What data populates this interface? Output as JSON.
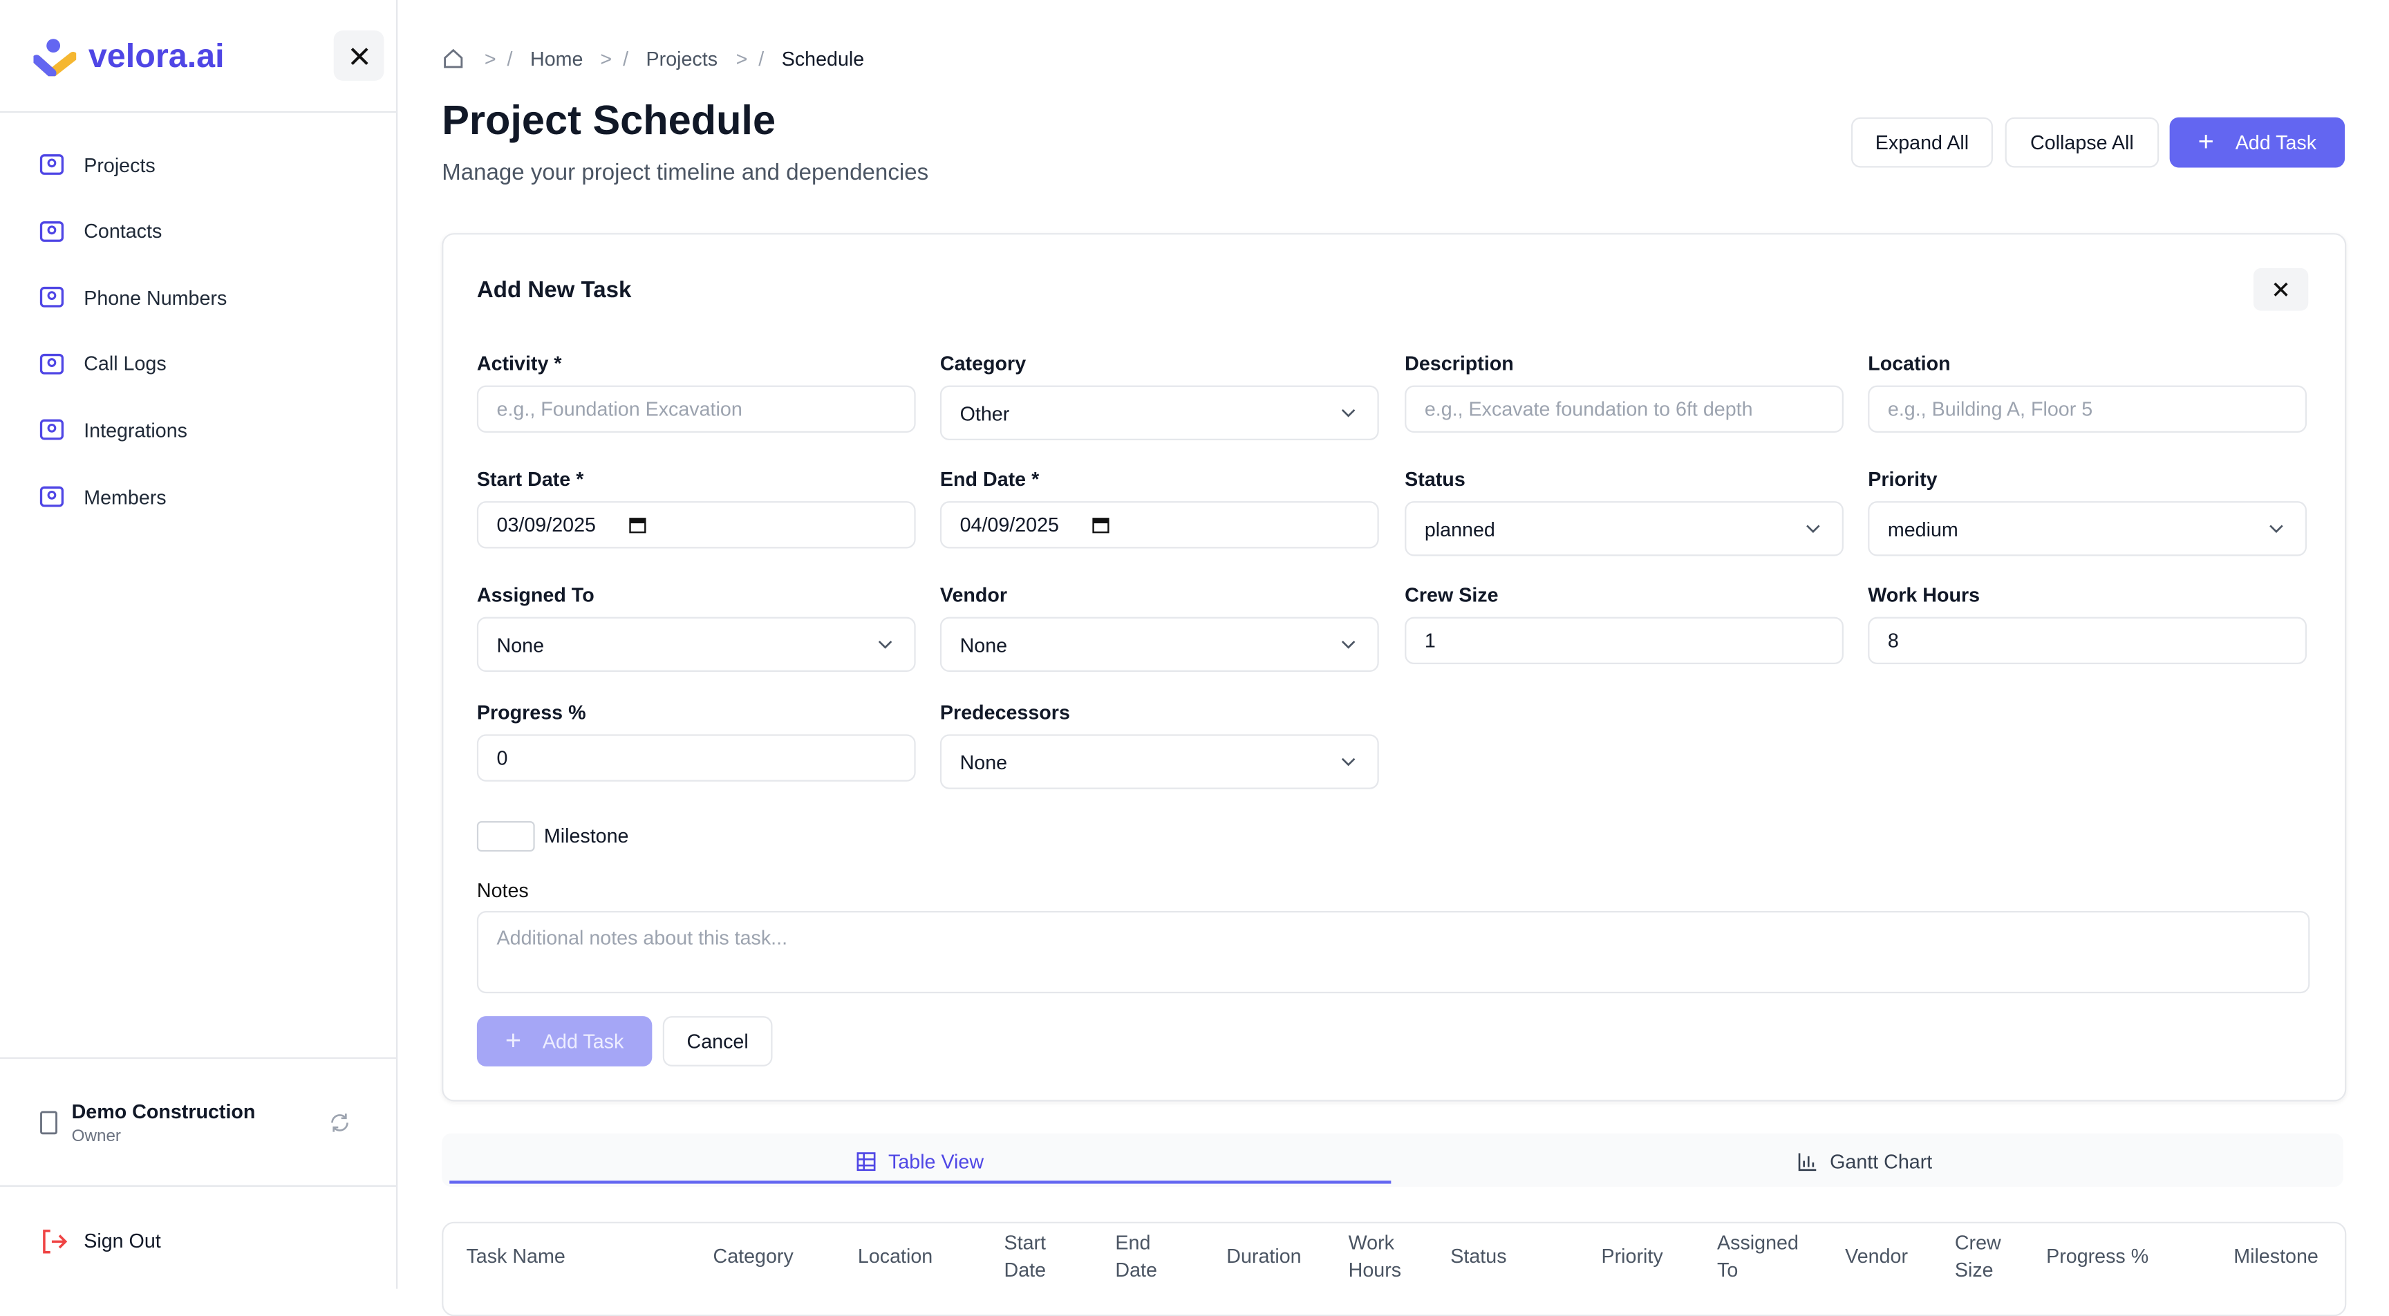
{
  "sidebar": {
    "brand": "velora.ai",
    "nav": [
      "Projects",
      "Contacts",
      "Phone Numbers",
      "Call Logs",
      "Integrations",
      "Members"
    ],
    "org": {
      "name": "Demo Construction",
      "role": "Owner"
    },
    "sign_out": "Sign Out"
  },
  "breadcrumb": [
    "Home",
    "Projects",
    "Schedule"
  ],
  "header": {
    "title": "Project Schedule",
    "subtitle": "Manage your project timeline and dependencies",
    "buttons": [
      "Expand All",
      "Collapse All",
      "Add Task"
    ]
  },
  "form": {
    "title": "Add New Task",
    "fields": [
      {
        "label": "Activity *",
        "placeholder": "e.g., Foundation Excavation"
      },
      {
        "label": "Category",
        "value": "Other"
      },
      {
        "label": "Description",
        "placeholder": "e.g., Excavate foundation to 6ft depth"
      },
      {
        "label": "Location",
        "placeholder": "e.g., Building A, Floor 5"
      },
      {
        "label": "Start Date *",
        "value": "03/09/2025"
      },
      {
        "label": "End Date *",
        "value": "04/09/2025"
      },
      {
        "label": "Status",
        "value": "planned"
      },
      {
        "label": "Priority",
        "value": "medium"
      },
      {
        "label": "Assigned To",
        "value": "None"
      },
      {
        "label": "Vendor",
        "value": "None"
      },
      {
        "label": "Crew Size",
        "value": "1"
      },
      {
        "label": "Work Hours",
        "value": "8"
      },
      {
        "label": "Progress %",
        "value": "0"
      },
      {
        "label": "Predecessors",
        "value": "None"
      }
    ],
    "milestone": "Milestone",
    "notes": {
      "label": "Notes",
      "placeholder": "Additional notes about this task..."
    },
    "buttons": [
      "Add Task",
      "Cancel"
    ]
  },
  "tabs": [
    "Table View",
    "Gantt Chart"
  ],
  "table": {
    "columns": [
      "Task Name",
      "Category",
      "Location",
      "Start Date",
      "End Date",
      "Duration",
      "Work Hours",
      "Status",
      "Priority",
      "Assigned To",
      "Vendor",
      "Crew Size",
      "Progress %",
      "Milestone"
    ]
  }
}
